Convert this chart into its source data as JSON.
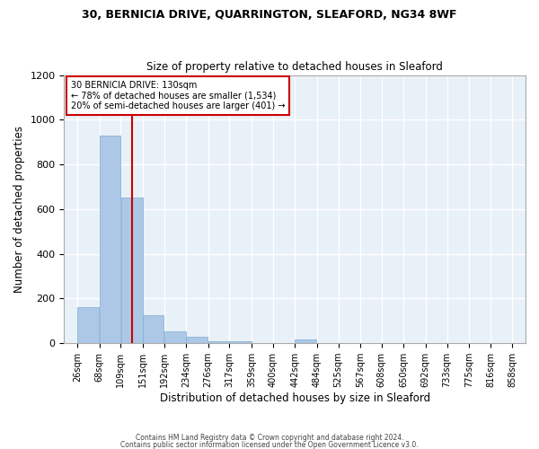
{
  "title1": "30, BERNICIA DRIVE, QUARRINGTON, SLEAFORD, NG34 8WF",
  "title2": "Size of property relative to detached houses in Sleaford",
  "xlabel": "Distribution of detached houses by size in Sleaford",
  "ylabel": "Number of detached properties",
  "footer1": "Contains HM Land Registry data © Crown copyright and database right 2024.",
  "footer2": "Contains public sector information licensed under the Open Government Licence v3.0.",
  "bin_labels": [
    "26sqm",
    "68sqm",
    "109sqm",
    "151sqm",
    "192sqm",
    "234sqm",
    "276sqm",
    "317sqm",
    "359sqm",
    "400sqm",
    "442sqm",
    "484sqm",
    "525sqm",
    "567sqm",
    "608sqm",
    "650sqm",
    "692sqm",
    "733sqm",
    "775sqm",
    "816sqm",
    "858sqm"
  ],
  "bin_edges": [
    26,
    68,
    109,
    151,
    192,
    234,
    276,
    317,
    359,
    400,
    442,
    484,
    525,
    567,
    608,
    650,
    692,
    733,
    775,
    816,
    858
  ],
  "bar_heights": [
    160,
    930,
    650,
    125,
    55,
    28,
    10,
    10,
    0,
    0,
    15,
    0,
    0,
    0,
    0,
    0,
    0,
    0,
    0,
    0
  ],
  "bar_color": "#adc8e6",
  "bar_edgecolor": "#7aadd4",
  "bg_color": "#e8f0f8",
  "grid_color": "#ffffff",
  "red_line_x": 130,
  "annotation_title": "30 BERNICIA DRIVE: 130sqm",
  "annotation_line1": "← 78% of detached houses are smaller (1,534)",
  "annotation_line2": "20% of semi-detached houses are larger (401) →",
  "annotation_box_color": "#ffffff",
  "annotation_border_color": "#cc0000",
  "ylim": [
    0,
    1200
  ],
  "yticks": [
    0,
    200,
    400,
    600,
    800,
    1000,
    1200
  ],
  "fig_bg": "#ffffff"
}
